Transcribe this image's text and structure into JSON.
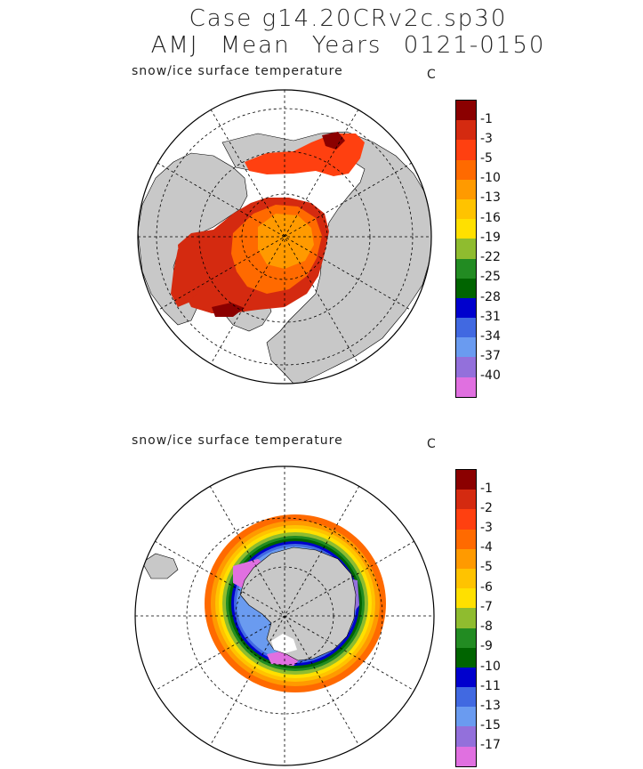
{
  "title": {
    "line1": "Case g14.20CRv2c.sp30",
    "line2": "AMJ Mean   Years 0121-0150"
  },
  "panels": [
    {
      "hemisphere": "north",
      "field_label": "snow/ice surface temperature",
      "unit": "C",
      "colorbar": {
        "labels": [
          "-1",
          "-3",
          "-5",
          "-10",
          "-13",
          "-16",
          "-19",
          "-22",
          "-25",
          "-28",
          "-31",
          "-34",
          "-37",
          "-40"
        ],
        "colors": [
          "#8b0000",
          "#d42a10",
          "#ff4010",
          "#ff6a00",
          "#ff9a00",
          "#ffc300",
          "#ffe000",
          "#8fbc2f",
          "#228b22",
          "#006400",
          "#0000cd",
          "#4169e1",
          "#6a9bf0",
          "#9370db",
          "#e070e0"
        ]
      }
    },
    {
      "hemisphere": "south",
      "field_label": "snow/ice surface temperature",
      "unit": "C",
      "colorbar": {
        "labels": [
          "-1",
          "-2",
          "-3",
          "-4",
          "-5",
          "-6",
          "-7",
          "-8",
          "-9",
          "-10",
          "-11",
          "-13",
          "-15",
          "-17"
        ],
        "colors": [
          "#8b0000",
          "#d42a10",
          "#ff4010",
          "#ff6a00",
          "#ff9a00",
          "#ffc300",
          "#ffe000",
          "#8fbc2f",
          "#228b22",
          "#006400",
          "#0000cd",
          "#4169e1",
          "#6a9bf0",
          "#9370db",
          "#e070e0"
        ]
      }
    }
  ],
  "colors": {
    "land": "#c8c8c8",
    "background": "#ffffff"
  }
}
